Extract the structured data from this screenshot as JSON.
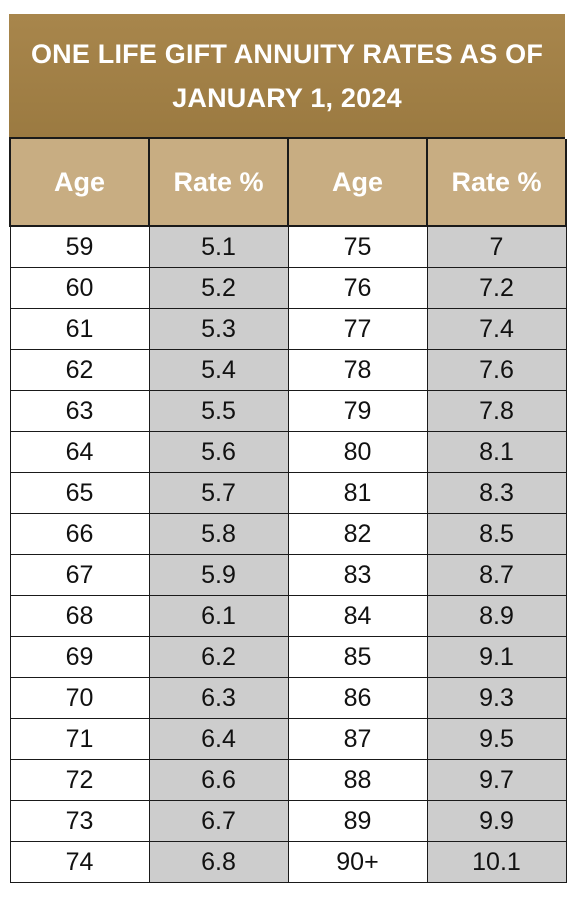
{
  "title": "ONE LIFE GIFT ANNUITY RATES AS OF JANUARY 1, 2024",
  "headers": [
    "Age",
    "Rate %",
    "Age",
    "Rate %"
  ],
  "rows": [
    {
      "age_left": "59",
      "rate_left": "5.1",
      "age_right": "75",
      "rate_right": "7"
    },
    {
      "age_left": "60",
      "rate_left": "5.2",
      "age_right": "76",
      "rate_right": "7.2"
    },
    {
      "age_left": "61",
      "rate_left": "5.3",
      "age_right": "77",
      "rate_right": "7.4"
    },
    {
      "age_left": "62",
      "rate_left": "5.4",
      "age_right": "78",
      "rate_right": "7.6"
    },
    {
      "age_left": "63",
      "rate_left": "5.5",
      "age_right": "79",
      "rate_right": "7.8"
    },
    {
      "age_left": "64",
      "rate_left": "5.6",
      "age_right": "80",
      "rate_right": "8.1"
    },
    {
      "age_left": "65",
      "rate_left": "5.7",
      "age_right": "81",
      "rate_right": "8.3"
    },
    {
      "age_left": "66",
      "rate_left": "5.8",
      "age_right": "82",
      "rate_right": "8.5"
    },
    {
      "age_left": "67",
      "rate_left": "5.9",
      "age_right": "83",
      "rate_right": "8.7"
    },
    {
      "age_left": "68",
      "rate_left": "6.1",
      "age_right": "84",
      "rate_right": "8.9"
    },
    {
      "age_left": "69",
      "rate_left": "6.2",
      "age_right": "85",
      "rate_right": "9.1"
    },
    {
      "age_left": "70",
      "rate_left": "6.3",
      "age_right": "86",
      "rate_right": "9.3"
    },
    {
      "age_left": "71",
      "rate_left": "6.4",
      "age_right": "87",
      "rate_right": "9.5"
    },
    {
      "age_left": "72",
      "rate_left": "6.6",
      "age_right": "88",
      "rate_right": "9.7"
    },
    {
      "age_left": "73",
      "rate_left": "6.7",
      "age_right": "89",
      "rate_right": "9.9"
    },
    {
      "age_left": "74",
      "rate_left": "6.8",
      "age_right": "90+",
      "rate_right": "10.1"
    }
  ],
  "colors": {
    "title_background": "#a07f45",
    "header_background": "#c8ad82",
    "rate_cell_background": "#cdcdcd",
    "age_cell_background": "#ffffff"
  }
}
